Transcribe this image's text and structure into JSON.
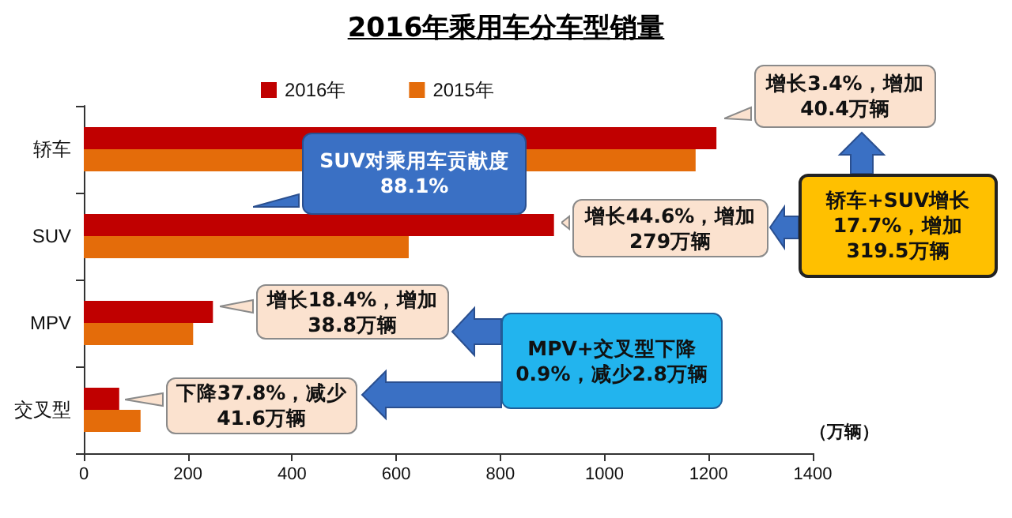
{
  "chart_data": {
    "type": "bar",
    "orientation": "horizontal",
    "title": "2016年乘用车分车型销量",
    "xlabel": "（万辆）",
    "categories": [
      "轿车",
      "SUV",
      "MPV",
      "交叉型"
    ],
    "series": [
      {
        "name": "2016年",
        "color": "#c00000",
        "values": [
          1215,
          903,
          248,
          68
        ]
      },
      {
        "name": "2015年",
        "color": "#e46c0a",
        "values": [
          1175,
          624,
          210,
          109
        ]
      }
    ],
    "xlim": [
      0,
      1400
    ],
    "xticks": [
      0,
      200,
      400,
      600,
      800,
      1000,
      1200,
      1400
    ],
    "grid": false,
    "legend": "top",
    "annotations": [
      "增长3.4%，增加40.4万辆",
      "SUV对乘用车贡献度88.1%",
      "增长44.6%，增加279万辆",
      "轿车+SUV增长17.7%，增加319.5万辆",
      "增长18.4%，增加38.8万辆",
      "MPV+交叉型下降0.9%，减少2.8万辆",
      "下降37.8%，减少41.6万辆"
    ]
  }
}
